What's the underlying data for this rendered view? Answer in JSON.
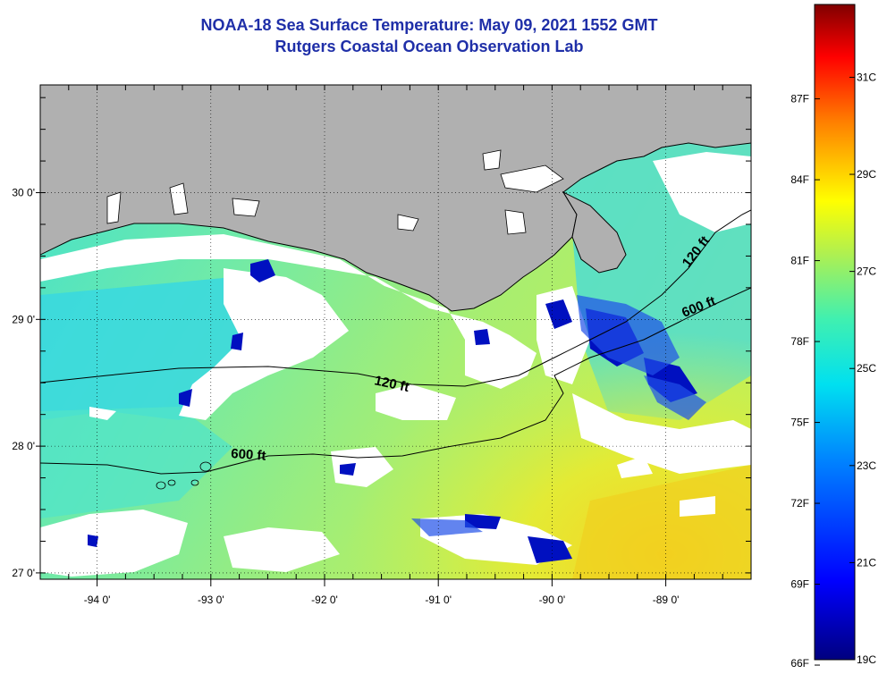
{
  "title": {
    "line1": "NOAA-18 Sea Surface Temperature:  May 09, 2021 1552 GMT",
    "line2": "Rutgers Coastal Ocean Observation Lab"
  },
  "map": {
    "lon_range": [
      -94.5,
      -88.25
    ],
    "lat_range": [
      26.95,
      30.85
    ],
    "lon_ticks": [
      {
        "value": -94,
        "label": "-94 0'"
      },
      {
        "value": -93,
        "label": "-93 0'"
      },
      {
        "value": -92,
        "label": "-92 0'"
      },
      {
        "value": -91,
        "label": "-91 0'"
      },
      {
        "value": -90,
        "label": "-90 0'"
      },
      {
        "value": -89,
        "label": "-89 0'"
      }
    ],
    "lat_ticks": [
      {
        "value": 27,
        "label": "27 0'"
      },
      {
        "value": 28,
        "label": "28 0'"
      },
      {
        "value": 29,
        "label": "29 0'"
      },
      {
        "value": 30,
        "label": "30 0'"
      }
    ],
    "contour_labels": [
      {
        "text": "120 ft"
      },
      {
        "text": "600 ft"
      },
      {
        "text": "120 ft"
      },
      {
        "text": "600 ft"
      }
    ],
    "colors": {
      "land": "#b0b0b0",
      "cloud": "#ffffff",
      "coastline": "#000000"
    }
  },
  "colorbar": {
    "min_c": 19,
    "max_c": 32.5,
    "fahrenheit_labels": [
      "87F",
      "84F",
      "81F",
      "78F",
      "75F",
      "72F",
      "69F",
      "66F"
    ],
    "celsius_labels": [
      "31C",
      "29C",
      "27C",
      "25C",
      "23C",
      "21C",
      "19C"
    ]
  }
}
